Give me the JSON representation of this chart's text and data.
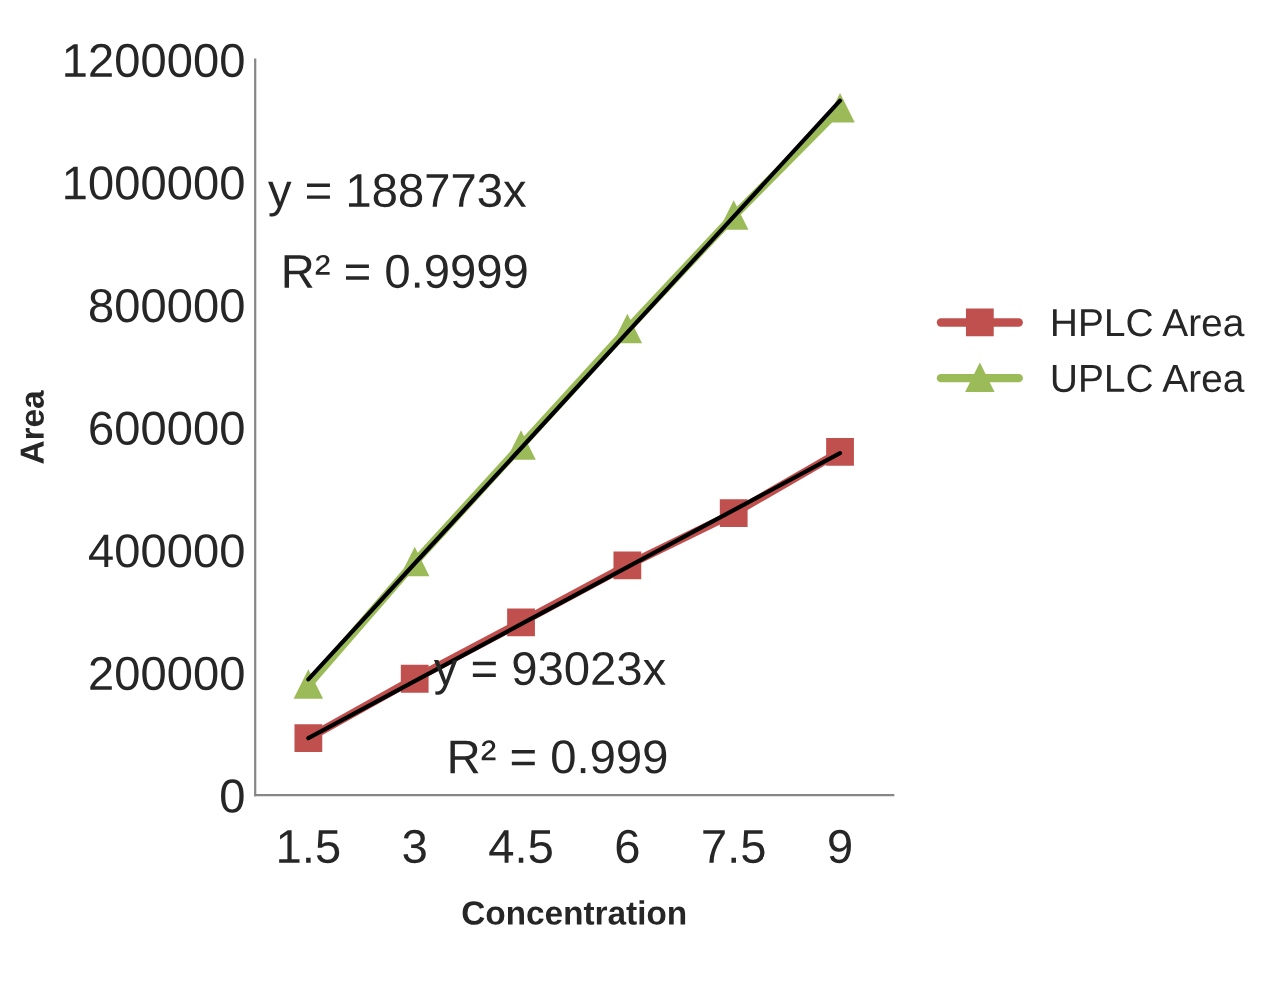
{
  "chart_data": {
    "type": "line",
    "xlabel": "Concentration",
    "ylabel": "Area",
    "categories": [
      "1.5",
      "3",
      "4.5",
      "6",
      "7.5",
      "9"
    ],
    "series": [
      {
        "name": "HPLC Area",
        "color": "#c0504d",
        "marker": "square",
        "values": [
          93000,
          190000,
          282000,
          375000,
          460000,
          560000
        ]
      },
      {
        "name": "UPLC Area",
        "color": "#9bbb59",
        "marker": "triangle",
        "values": [
          180000,
          380000,
          570000,
          760000,
          945000,
          1120000
        ]
      },
      {
        "type": "line",
        "color": "#000000",
        "marker": "none",
        "values": [
          93000,
          186000,
          279000,
          372000,
          465000,
          558000
        ]
      },
      {
        "type": "line",
        "color": "#000000",
        "marker": "none",
        "values": [
          189000,
          378000,
          566000,
          755000,
          944000,
          1133000
        ]
      }
    ],
    "ylim": [
      0,
      1200000
    ],
    "yticks": [
      0,
      200000,
      400000,
      600000,
      800000,
      1000000,
      1200000
    ],
    "grid": false,
    "legend": "right",
    "annotations": [
      "y = 188773x",
      "R² = 0.9999",
      "y = 93023x",
      "R² = 0.999"
    ]
  }
}
